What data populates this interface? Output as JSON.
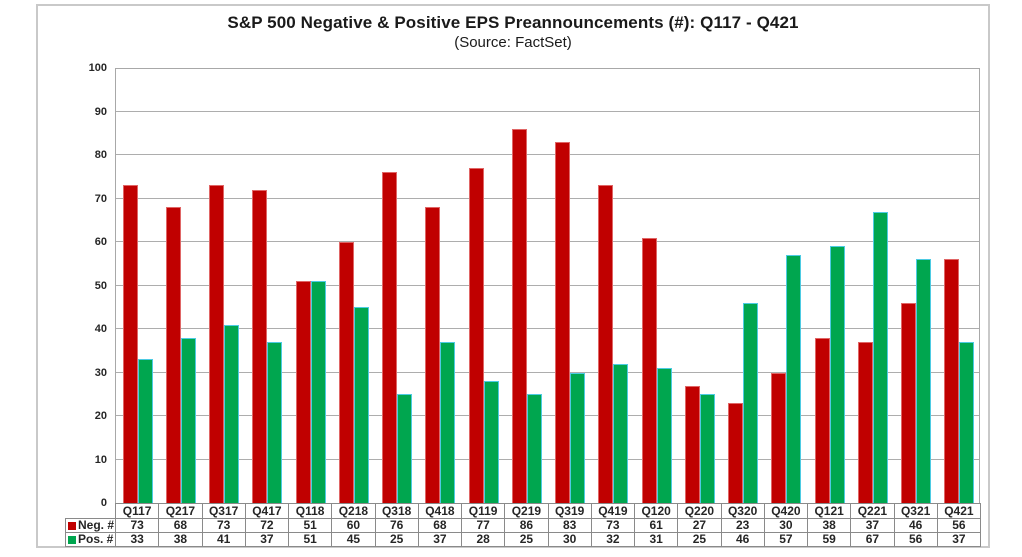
{
  "chart_data": {
    "type": "bar",
    "title": "S&P 500 Negative & Positive EPS Preannouncements (#): Q117 - Q421",
    "subtitle": "(Source: FactSet)",
    "categories": [
      "Q117",
      "Q217",
      "Q317",
      "Q417",
      "Q118",
      "Q218",
      "Q318",
      "Q418",
      "Q119",
      "Q219",
      "Q319",
      "Q419",
      "Q120",
      "Q220",
      "Q320",
      "Q420",
      "Q121",
      "Q221",
      "Q321",
      "Q421"
    ],
    "series": [
      {
        "name": "Neg. #",
        "color": "#c00000",
        "border_color": "#e06666",
        "values": [
          73,
          68,
          73,
          72,
          51,
          60,
          76,
          68,
          77,
          86,
          83,
          73,
          61,
          27,
          23,
          30,
          38,
          37,
          46,
          56
        ]
      },
      {
        "name": "Pos. #",
        "color": "#00a64f",
        "border_color": "#4dcbe3",
        "values": [
          33,
          38,
          41,
          37,
          51,
          45,
          25,
          37,
          28,
          25,
          30,
          32,
          31,
          25,
          46,
          57,
          59,
          67,
          56,
          37
        ]
      }
    ],
    "ylim": [
      0,
      100
    ],
    "yticks": [
      0,
      10,
      20,
      30,
      40,
      50,
      60,
      70,
      80,
      90,
      100
    ],
    "grid": "horizontal",
    "legend_position": "table-left",
    "data_table_shown": true
  },
  "colors": {
    "neg_fill": "#c00000",
    "neg_border": "#e06666",
    "pos_fill": "#00a64f",
    "pos_border": "#4dcbe3",
    "gridline": "#adadad",
    "plot_border": "#a8a8a8",
    "table_border": "#8a8a8a",
    "outer_border": "#c9c9c9",
    "text": "#262626"
  }
}
